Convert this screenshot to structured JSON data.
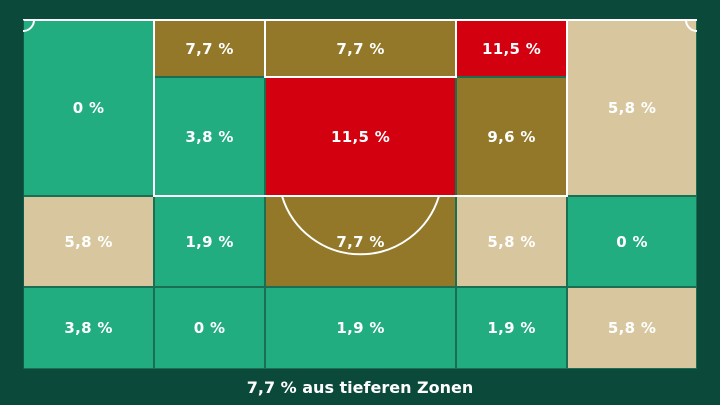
{
  "colors": {
    "background": "#0b4a3a",
    "green": "#22ad80",
    "beige": "#d8c79e",
    "olive": "#927828",
    "red": "#d3000f",
    "lines": "#ffffff"
  },
  "zones": [
    {
      "id": "z-left-top",
      "value": "0 %",
      "color": "green"
    },
    {
      "id": "z-box-top-l",
      "value": "7,7 %",
      "color": "olive"
    },
    {
      "id": "z-box-top-c",
      "value": "7,7 %",
      "color": "olive"
    },
    {
      "id": "z-box-top-r",
      "value": "11,5 %",
      "color": "red"
    },
    {
      "id": "z-right-top",
      "value": "5,8 %",
      "color": "beige"
    },
    {
      "id": "z-box-mid-l",
      "value": "3,8 %",
      "color": "green"
    },
    {
      "id": "z-box-mid-c",
      "value": "11,5 %",
      "color": "red"
    },
    {
      "id": "z-box-mid-r",
      "value": "9,6 %",
      "color": "olive"
    },
    {
      "id": "z-row3-1",
      "value": "5,8 %",
      "color": "beige"
    },
    {
      "id": "z-row3-2",
      "value": "1,9 %",
      "color": "green"
    },
    {
      "id": "z-row3-3",
      "value": "7,7 %",
      "color": "olive"
    },
    {
      "id": "z-row3-4",
      "value": "5,8 %",
      "color": "beige"
    },
    {
      "id": "z-row3-5",
      "value": "0 %",
      "color": "green"
    },
    {
      "id": "z-row4-1",
      "value": "3,8 %",
      "color": "green"
    },
    {
      "id": "z-row4-2",
      "value": "0 %",
      "color": "green"
    },
    {
      "id": "z-row4-3",
      "value": "1,9 %",
      "color": "green"
    },
    {
      "id": "z-row4-4",
      "value": "1,9 %",
      "color": "green"
    },
    {
      "id": "z-row4-5",
      "value": "5,8 %",
      "color": "beige"
    }
  ],
  "footer": {
    "text": "7,7 % aus tieferen Zonen"
  }
}
